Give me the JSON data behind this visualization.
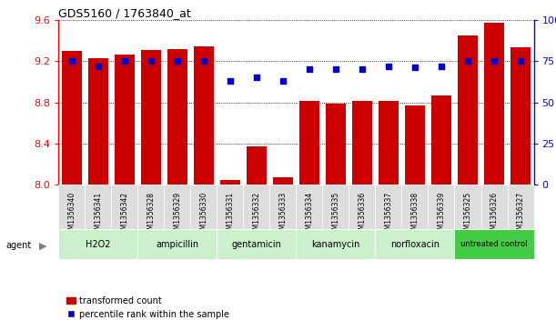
{
  "title": "GDS5160 / 1763840_at",
  "samples": [
    "GSM1356340",
    "GSM1356341",
    "GSM1356342",
    "GSM1356328",
    "GSM1356329",
    "GSM1356330",
    "GSM1356331",
    "GSM1356332",
    "GSM1356333",
    "GSM1356334",
    "GSM1356335",
    "GSM1356336",
    "GSM1356337",
    "GSM1356338",
    "GSM1356339",
    "GSM1356325",
    "GSM1356326",
    "GSM1356327"
  ],
  "bar_values": [
    9.3,
    9.23,
    9.26,
    9.31,
    9.32,
    9.34,
    8.05,
    8.37,
    8.07,
    8.81,
    8.79,
    8.81,
    8.81,
    8.77,
    8.87,
    9.45,
    9.57,
    9.33
  ],
  "percentile_values": [
    75,
    72,
    75,
    75,
    75,
    75,
    63,
    65,
    63,
    70,
    70,
    70,
    72,
    71,
    72,
    75,
    75,
    75
  ],
  "bar_color": "#cc0000",
  "percentile_color": "#0000cc",
  "ylim_left": [
    8.0,
    9.6
  ],
  "ylim_right": [
    0,
    100
  ],
  "yticks_left": [
    8.0,
    8.4,
    8.8,
    9.2,
    9.6
  ],
  "yticks_right": [
    0,
    25,
    50,
    75,
    100
  ],
  "ytick_labels_right": [
    "0",
    "25",
    "50",
    "75",
    "100%"
  ],
  "groups": [
    {
      "label": "H2O2",
      "start": 0,
      "end": 3,
      "light": true
    },
    {
      "label": "ampicillin",
      "start": 3,
      "end": 6,
      "light": true
    },
    {
      "label": "gentamicin",
      "start": 6,
      "end": 9,
      "light": true
    },
    {
      "label": "kanamycin",
      "start": 9,
      "end": 12,
      "light": true
    },
    {
      "label": "norfloxacin",
      "start": 12,
      "end": 15,
      "light": true
    },
    {
      "label": "untreated control",
      "start": 15,
      "end": 18,
      "light": false
    }
  ],
  "group_color_light": "#ccf0cc",
  "group_color_dark": "#44cc44",
  "xtick_bg": "#dddddd",
  "legend_bar_label": "transformed count",
  "legend_dot_label": "percentile rank within the sample",
  "agent_label": "agent",
  "background_color": "#ffffff"
}
